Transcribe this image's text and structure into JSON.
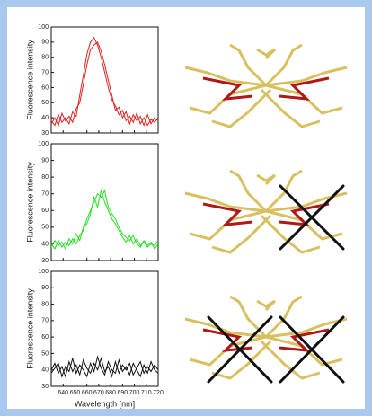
{
  "chart_data": [
    {
      "type": "line",
      "y_label": "Fluorescence intensity",
      "x": [
        630,
        633,
        636,
        639,
        642,
        645,
        648,
        651,
        654,
        657,
        660,
        663,
        666,
        669,
        672,
        675,
        678,
        681,
        684,
        687,
        690,
        693,
        696,
        699,
        702,
        705,
        708,
        711,
        714,
        717,
        720
      ],
      "series": [
        {
          "color": "#e02020",
          "values": [
            38,
            35,
            42,
            37,
            40,
            36,
            44,
            41,
            55,
            68,
            82,
            90,
            93,
            88,
            80,
            70,
            60,
            52,
            48,
            42,
            45,
            38,
            41,
            37,
            43,
            36,
            40,
            35,
            39,
            37,
            40
          ]
        },
        {
          "color": "#e02020",
          "values": [
            36,
            40,
            35,
            43,
            38,
            41,
            37,
            46,
            50,
            62,
            75,
            85,
            88,
            90,
            84,
            75,
            65,
            55,
            45,
            47,
            40,
            44,
            36,
            42,
            38,
            41,
            35,
            42,
            36,
            40,
            38
          ]
        }
      ],
      "xlim": [
        630,
        720
      ],
      "xticks": [
        640,
        650,
        660,
        670,
        680,
        690,
        700,
        710,
        720
      ],
      "ylim": [
        30,
        100
      ],
      "yticks": [
        30,
        40,
        50,
        60,
        70,
        80,
        90,
        100
      ]
    },
    {
      "type": "line",
      "y_label": "Fluorescence intensity",
      "x": [
        630,
        633,
        636,
        639,
        642,
        645,
        648,
        651,
        654,
        657,
        660,
        663,
        666,
        669,
        672,
        675,
        678,
        681,
        684,
        687,
        690,
        693,
        696,
        699,
        702,
        705,
        708,
        711,
        714,
        717,
        720
      ],
      "series": [
        {
          "color": "#22e022",
          "values": [
            40,
            37,
            42,
            38,
            41,
            39,
            43,
            40,
            45,
            48,
            55,
            60,
            65,
            70,
            68,
            72,
            62,
            58,
            55,
            50,
            46,
            44,
            42,
            45,
            40,
            38,
            42,
            39,
            41,
            37,
            40
          ]
        },
        {
          "color": "#22e022",
          "values": [
            38,
            42,
            39,
            41,
            37,
            43,
            40,
            46,
            42,
            50,
            52,
            58,
            68,
            62,
            72,
            65,
            60,
            55,
            52,
            48,
            44,
            41,
            45,
            40,
            43,
            39,
            41,
            38,
            40,
            39,
            42
          ]
        }
      ],
      "xlim": [
        630,
        720
      ],
      "xticks": [
        640,
        650,
        660,
        670,
        680,
        690,
        700,
        710,
        720
      ],
      "ylim": [
        30,
        100
      ],
      "yticks": [
        30,
        40,
        50,
        60,
        70,
        80,
        90,
        100
      ]
    },
    {
      "type": "line",
      "y_label": "Fluorescence intensity",
      "x_label": "Wavelength [nm]",
      "x": [
        630,
        633,
        636,
        639,
        642,
        645,
        648,
        651,
        654,
        657,
        660,
        663,
        666,
        669,
        672,
        675,
        678,
        681,
        684,
        687,
        690,
        693,
        696,
        699,
        702,
        705,
        708,
        711,
        714,
        717,
        720
      ],
      "series": [
        {
          "color": "#111111",
          "values": [
            40,
            44,
            38,
            42,
            36,
            45,
            39,
            43,
            37,
            46,
            41,
            38,
            44,
            40,
            47,
            39,
            42,
            36,
            45,
            38,
            43,
            40,
            44,
            37,
            41,
            45,
            38,
            42,
            39,
            43,
            40
          ]
        },
        {
          "color": "#111111",
          "values": [
            38,
            41,
            44,
            36,
            42,
            39,
            47,
            38,
            43,
            40,
            36,
            44,
            39,
            48,
            41,
            37,
            45,
            40,
            38,
            46,
            39,
            42,
            37,
            44,
            40,
            36,
            43,
            38,
            45,
            40,
            38
          ]
        }
      ],
      "xlim": [
        630,
        720
      ],
      "xticks": [
        640,
        650,
        660,
        670,
        680,
        690,
        700,
        710,
        720
      ],
      "show_x_tick_labels": true,
      "ylim": [
        30,
        100
      ],
      "yticks": [
        30,
        40,
        50,
        60,
        70,
        80,
        90,
        100
      ]
    }
  ]
}
